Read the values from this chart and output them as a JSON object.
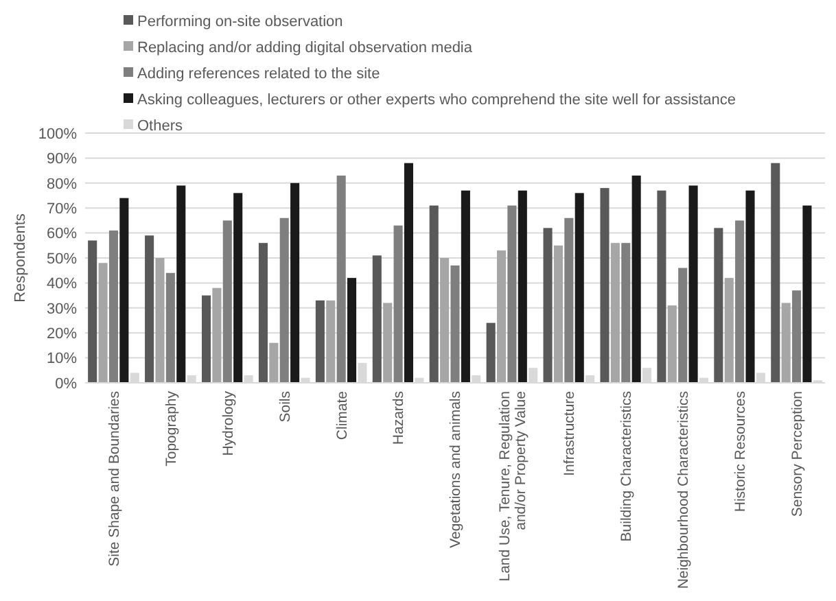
{
  "chart_data": {
    "type": "bar",
    "ylabel": "Respondents",
    "categories": [
      "Site Shape and Boundaries",
      "Topography",
      "Hydrology",
      "Soils",
      "Climate",
      "Hazards",
      "Vegetations and animals",
      "Land Use, Tenure, Regulation and/or Property Value",
      "Infrastructure",
      "Building Characteristics",
      "Neighbourhood Characteristics",
      "Historic Resources",
      "Sensory Perception"
    ],
    "series": [
      {
        "name": "Performing on-site observation",
        "color": "#595959",
        "values": [
          57,
          59,
          35,
          56,
          33,
          51,
          71,
          24,
          62,
          78,
          77,
          62,
          88
        ]
      },
      {
        "name": "Replacing and/or adding digital observation media",
        "color": "#a6a6a6",
        "values": [
          48,
          50,
          38,
          16,
          33,
          32,
          50,
          53,
          55,
          56,
          31,
          42,
          32
        ]
      },
      {
        "name": "Adding references related to the site",
        "color": "#7f7f7f",
        "values": [
          61,
          44,
          65,
          66,
          83,
          63,
          47,
          71,
          66,
          56,
          46,
          65,
          37
        ]
      },
      {
        "name": "Asking colleagues, lecturers or other experts who comprehend the site well for assistance",
        "color": "#1a1a1a",
        "values": [
          74,
          79,
          76,
          80,
          42,
          88,
          77,
          77,
          76,
          83,
          79,
          77,
          71
        ]
      },
      {
        "name": "Others",
        "color": "#d9d9d9",
        "values": [
          4,
          3,
          3,
          2,
          8,
          2,
          3,
          6,
          3,
          6,
          2,
          4,
          1
        ]
      }
    ],
    "ylim": [
      0,
      100
    ],
    "yticks": [
      {
        "value": 0,
        "label": "0%"
      },
      {
        "value": 10,
        "label": "10%"
      },
      {
        "value": 20,
        "label": "20%"
      },
      {
        "value": 30,
        "label": "30%"
      },
      {
        "value": 40,
        "label": "40%"
      },
      {
        "value": 50,
        "label": "50%"
      },
      {
        "value": 60,
        "label": "60%"
      },
      {
        "value": 70,
        "label": "70%"
      },
      {
        "value": 80,
        "label": "80%"
      },
      {
        "value": 90,
        "label": "90%"
      },
      {
        "value": 100,
        "label": "100%"
      }
    ],
    "grid": "y",
    "legend": "top"
  }
}
